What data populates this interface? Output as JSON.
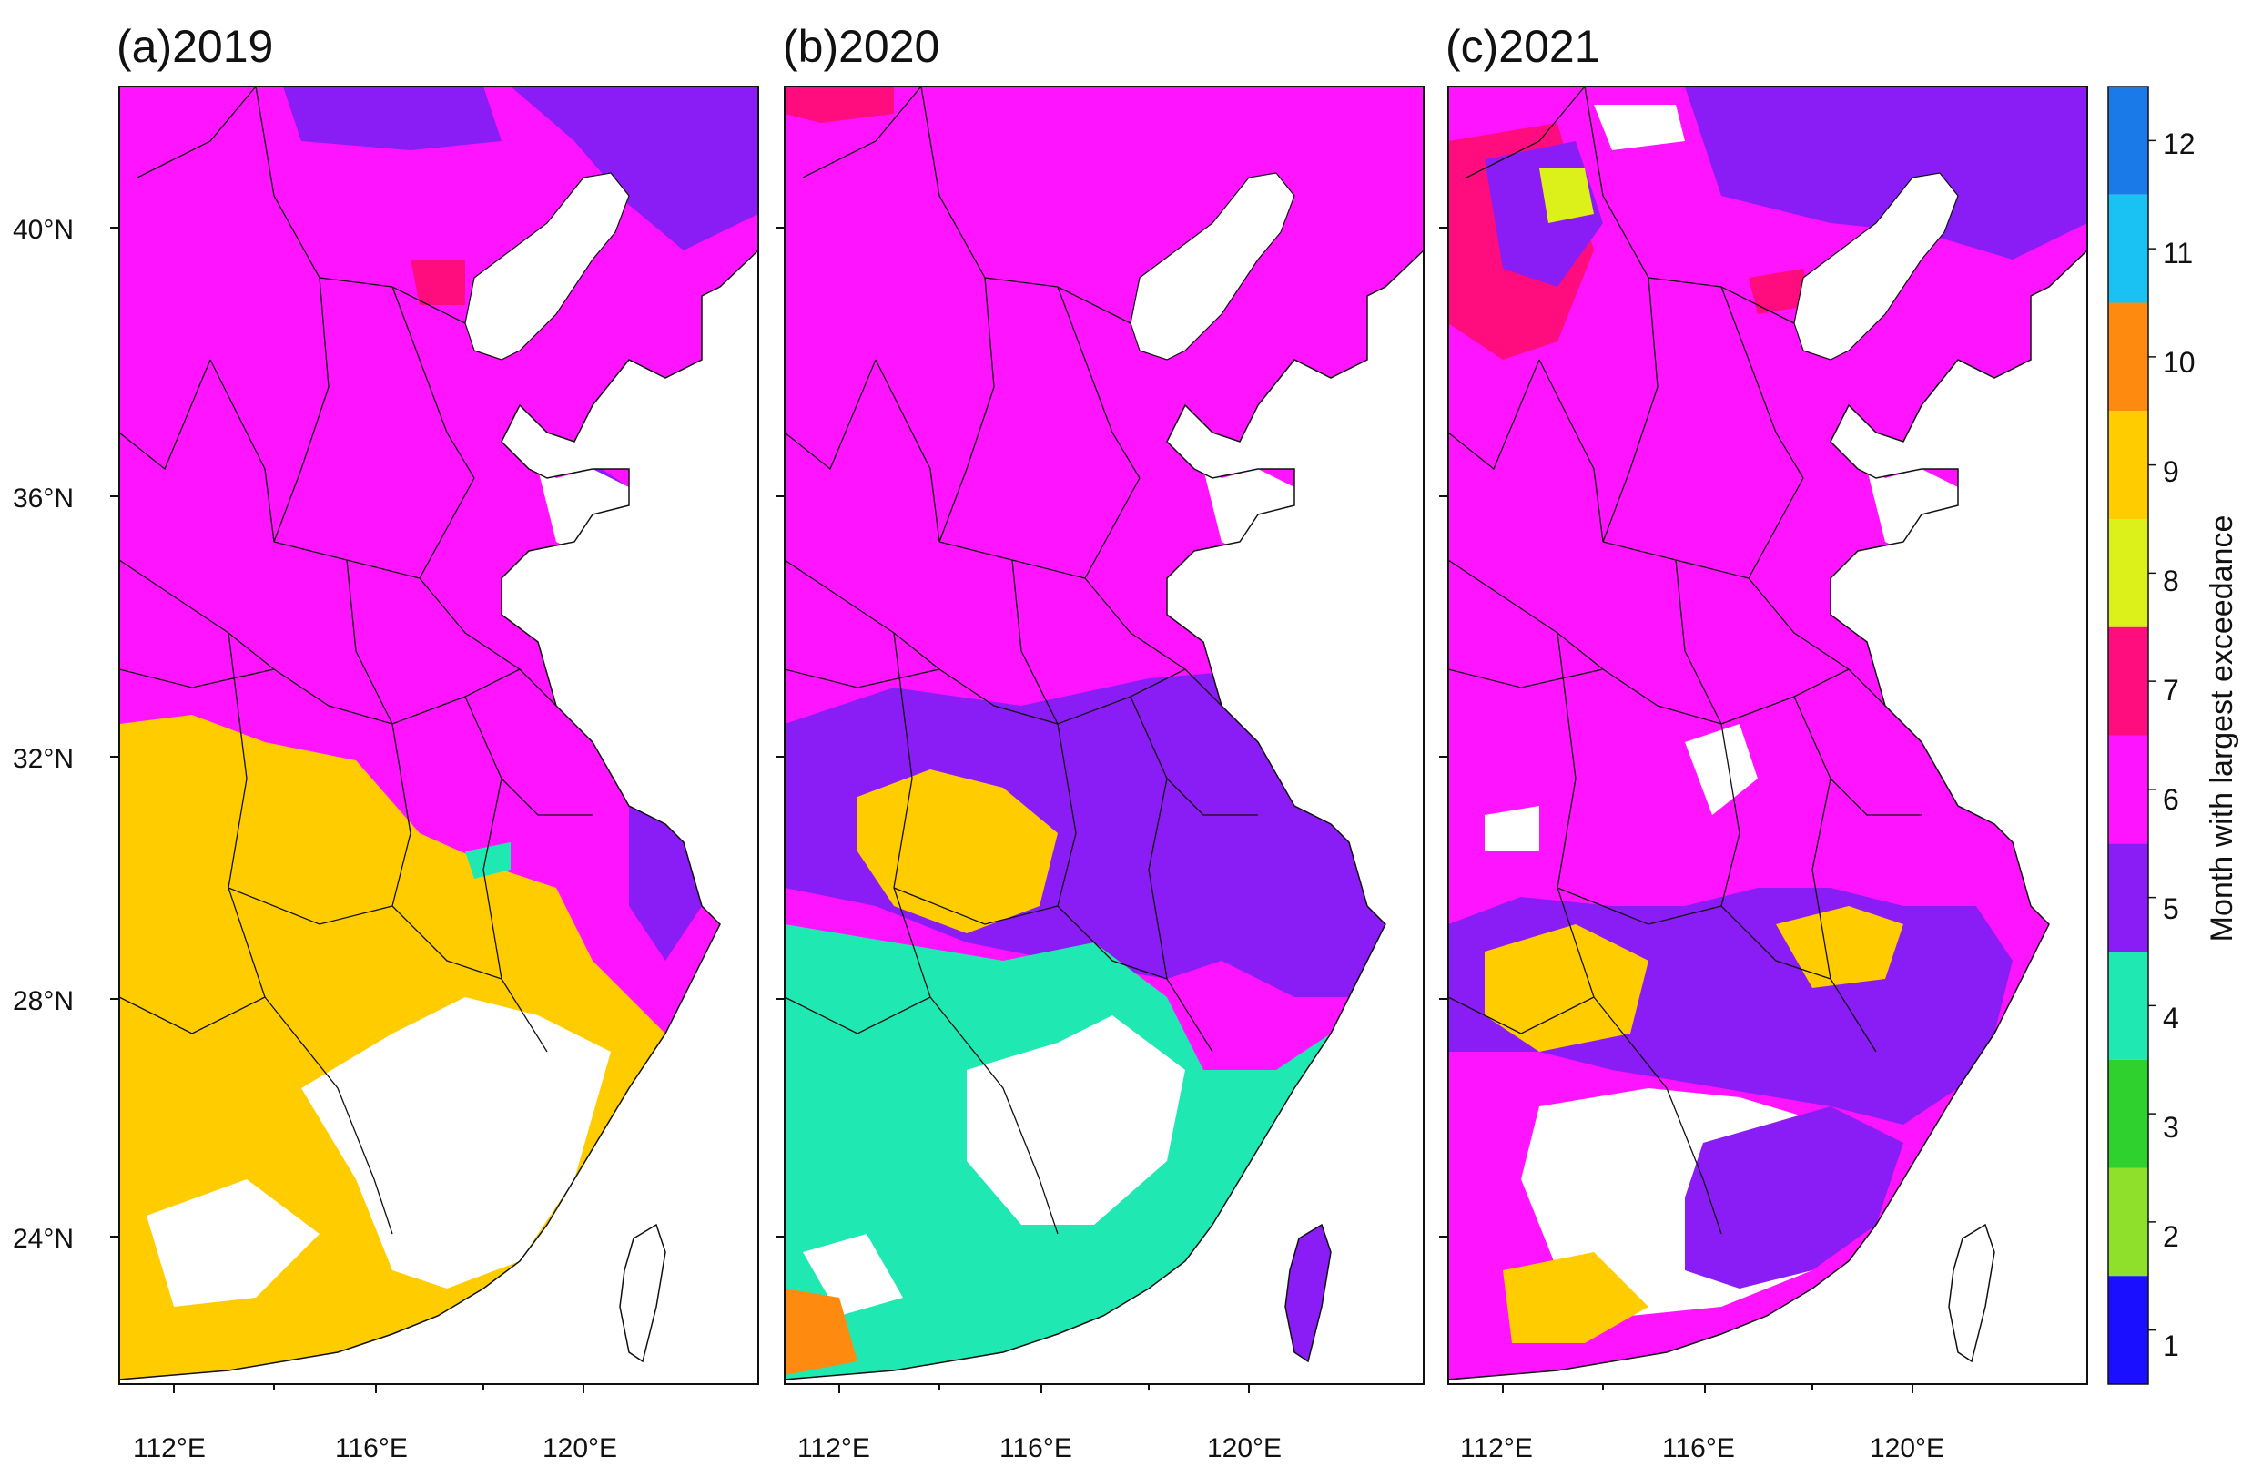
{
  "panels": [
    {
      "id": "a",
      "title": "(a)2019",
      "dominant": 6,
      "south": 9
    },
    {
      "id": "b",
      "title": "(b)2020",
      "dominant": 6,
      "south": 4
    },
    {
      "id": "c",
      "title": "(c)2021",
      "dominant": 6,
      "south": 5
    }
  ],
  "axes": {
    "y_ticks": [
      "40°N",
      "36°N",
      "32°N",
      "28°N",
      "24°N"
    ],
    "x_ticks": [
      "112°E",
      "116°E",
      "120°E"
    ]
  },
  "colorbar": {
    "title": "Month with largest exceedance",
    "months": [
      "1",
      "2",
      "3",
      "4",
      "5",
      "6",
      "7",
      "8",
      "9",
      "10",
      "11",
      "12"
    ],
    "colors": [
      "#1a0fff",
      "#8ee02a",
      "#2fd12f",
      "#20e8b2",
      "#8a1cf5",
      "#ff14ff",
      "#ff0c7e",
      "#dcf01a",
      "#ffcc00",
      "#ff8a10",
      "#19c2f2",
      "#1a7ae8"
    ]
  },
  "colors": {
    "background": "#ffffff",
    "boundary": "#111111"
  }
}
